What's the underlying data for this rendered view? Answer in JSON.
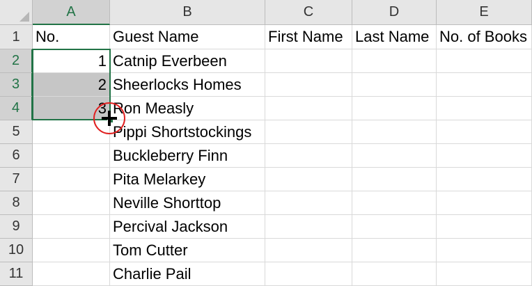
{
  "column_headers": [
    "A",
    "B",
    "C",
    "D",
    "E"
  ],
  "selected_column": "A",
  "row_headers": [
    "1",
    "2",
    "3",
    "4",
    "5",
    "6",
    "7",
    "8",
    "9",
    "10",
    "11"
  ],
  "selected_rows": [
    "2",
    "3",
    "4"
  ],
  "header_row": {
    "A": "No.",
    "B": "Guest Name",
    "C": "First Name",
    "D": "Last Name",
    "E": "No. of Books"
  },
  "rows": [
    {
      "no": "1",
      "guest": "Catnip Everbeen"
    },
    {
      "no": "2",
      "guest": "Sheerlocks Homes"
    },
    {
      "no": "3",
      "guest": "Ron Measly"
    },
    {
      "no": "",
      "guest": "Pippi Shortstockings"
    },
    {
      "no": "",
      "guest": "Buckleberry Finn"
    },
    {
      "no": "",
      "guest": "Pita Melarkey"
    },
    {
      "no": "",
      "guest": "Neville Shorttop"
    },
    {
      "no": "",
      "guest": "Percival Jackson"
    },
    {
      "no": "",
      "guest": "Tom Cutter"
    },
    {
      "no": "",
      "guest": "Charlie Pail"
    }
  ],
  "colors": {
    "selection": "#217346",
    "cursor_ring": "#e02020",
    "selected_fill": "#c6c6c6"
  },
  "cursor_icon": "fill-crosshair-icon"
}
